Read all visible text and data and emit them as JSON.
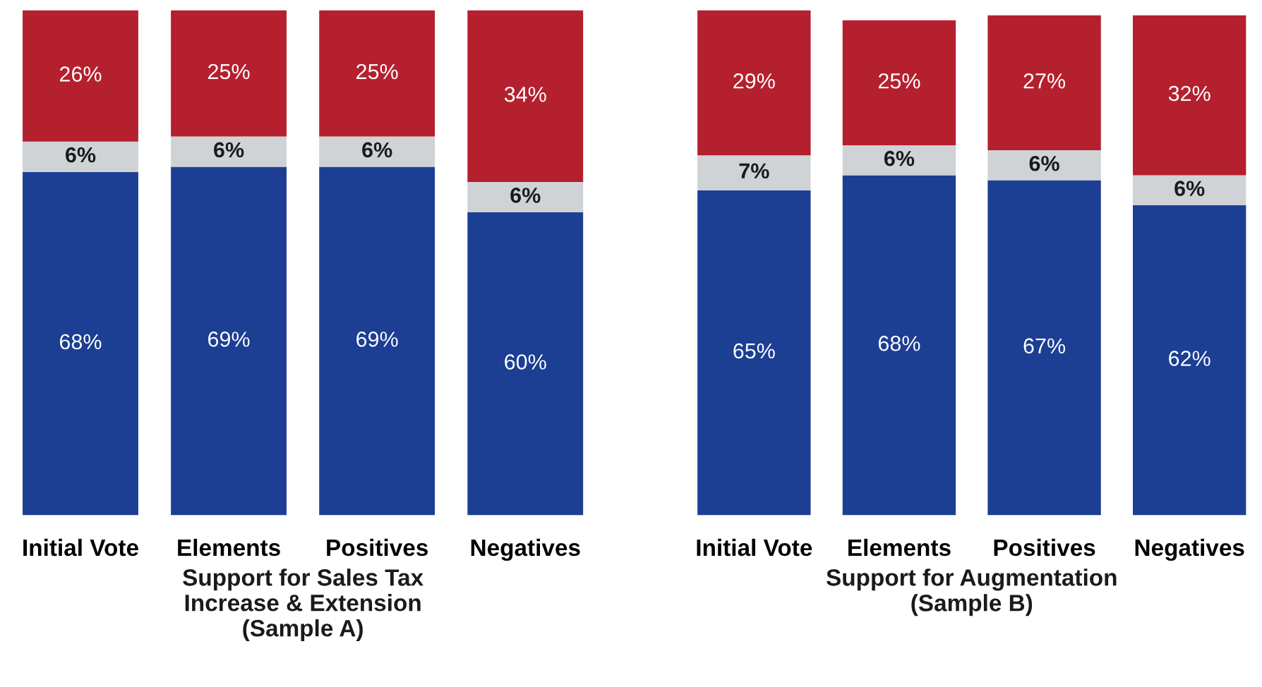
{
  "chart_data": [
    {
      "type": "bar",
      "stacked": true,
      "xlabel": "Support for Sales Tax\nIncrease & Extension\n(Sample A)",
      "categories": [
        "Initial Vote",
        "Elements",
        "Positives",
        "Negatives"
      ],
      "series": [
        {
          "color": "#1c3f94",
          "values": [
            68,
            69,
            69,
            60
          ],
          "value_labels": [
            "68%",
            "69%",
            "69%",
            "60%"
          ]
        },
        {
          "color": "#cfd3d6",
          "values": [
            6,
            6,
            6,
            6
          ],
          "value_labels": [
            "6%",
            "6%",
            "6%",
            "6%"
          ]
        },
        {
          "color": "#b5202e",
          "values": [
            26,
            25,
            25,
            34
          ],
          "value_labels": [
            "26%",
            "25%",
            "25%",
            "34%"
          ]
        }
      ]
    },
    {
      "type": "bar",
      "stacked": true,
      "xlabel": "Support for Augmentation\n(Sample B)",
      "categories": [
        "Initial Vote",
        "Elements",
        "Positives",
        "Negatives"
      ],
      "series": [
        {
          "color": "#1c3f94",
          "values": [
            65,
            68,
            67,
            62
          ],
          "value_labels": [
            "65%",
            "68%",
            "67%",
            "62%"
          ]
        },
        {
          "color": "#cfd3d6",
          "values": [
            7,
            6,
            6,
            6
          ],
          "value_labels": [
            "7%",
            "6%",
            "6%",
            "6%"
          ]
        },
        {
          "color": "#b5202e",
          "values": [
            29,
            25,
            27,
            32
          ],
          "value_labels": [
            "29%",
            "25%",
            "27%",
            "32%"
          ]
        }
      ]
    }
  ]
}
